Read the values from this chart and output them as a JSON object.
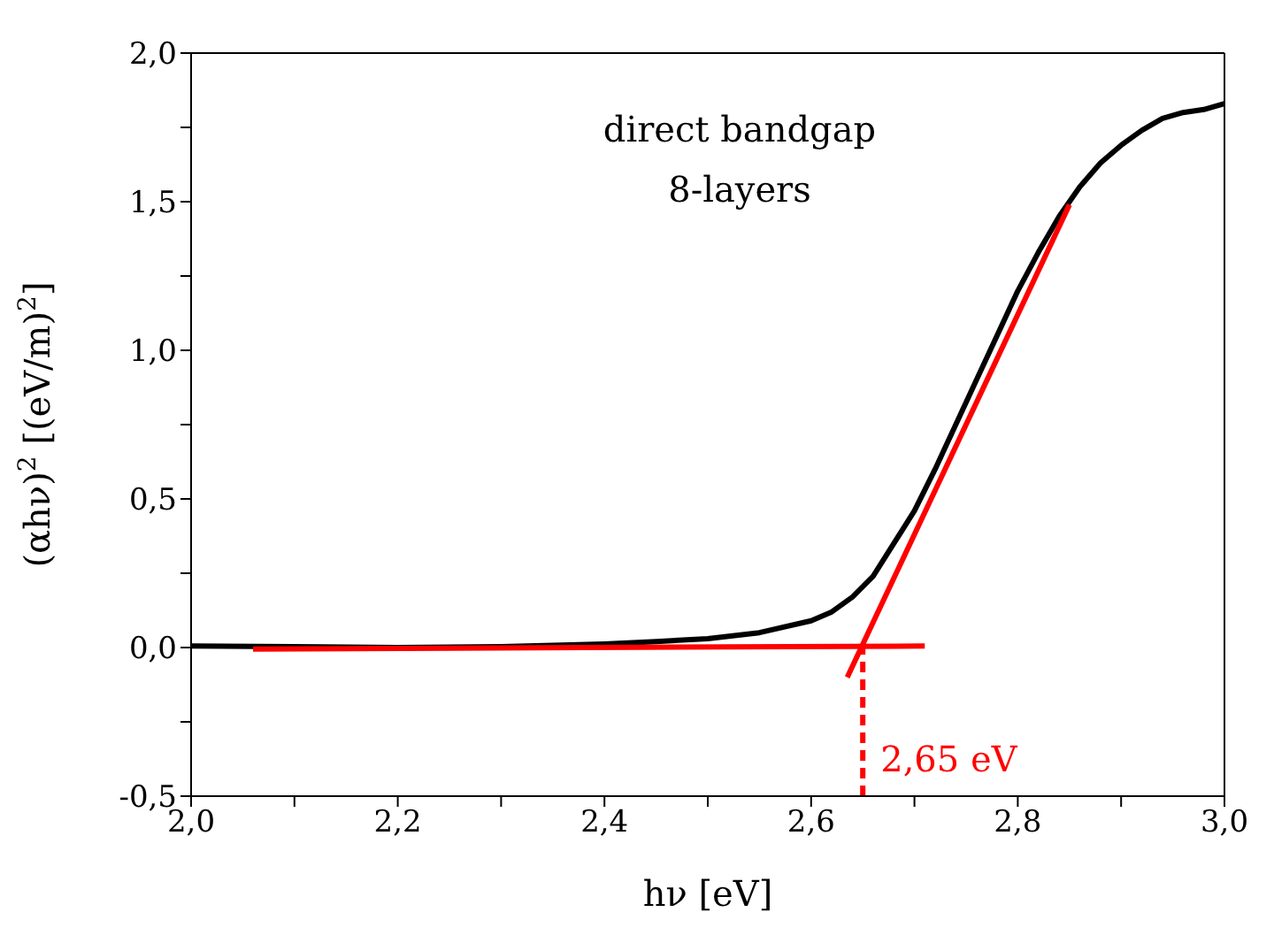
{
  "chart_data": {
    "type": "line",
    "xlabel": "hν  [eV]",
    "ylabel": "(αhν)$^{2}$   [(eV/m)$^{2}$]",
    "annotations": [
      "direct bandgap",
      "8-layers"
    ],
    "xlim": [
      2,
      3
    ],
    "ylim": [
      -0.5,
      2
    ],
    "xticks": [
      {
        "value": 2,
        "label": "2,0"
      },
      {
        "value": 2.1,
        "label": null
      },
      {
        "value": 2.2,
        "label": "2,2"
      },
      {
        "value": 2.3,
        "label": null
      },
      {
        "value": 2.4,
        "label": "2,4"
      },
      {
        "value": 2.5,
        "label": null
      },
      {
        "value": 2.6,
        "label": "2,6"
      },
      {
        "value": 2.7,
        "label": null
      },
      {
        "value": 2.8,
        "label": "2,8"
      },
      {
        "value": 2.9,
        "label": null
      },
      {
        "value": 3,
        "label": "3,0"
      }
    ],
    "yticks": [
      {
        "value": -0.5,
        "label": "-0,5"
      },
      {
        "value": -0.25,
        "label": null
      },
      {
        "value": 0,
        "label": "0,0"
      },
      {
        "value": 0.25,
        "label": null
      },
      {
        "value": 0.5,
        "label": "0,5"
      },
      {
        "value": 0.75,
        "label": null
      },
      {
        "value": 1,
        "label": "1,0"
      },
      {
        "value": 1.25,
        "label": null
      },
      {
        "value": 1.5,
        "label": "1,5"
      },
      {
        "value": 1.75,
        "label": null
      },
      {
        "value": 2,
        "label": "2,0"
      }
    ],
    "marker": "none",
    "line_style": "solid",
    "series": [
      {
        "color": "#000000",
        "x": [
          2.0,
          2.1,
          2.2,
          2.3,
          2.4,
          2.45,
          2.5,
          2.55,
          2.6,
          2.62,
          2.64,
          2.66,
          2.68,
          2.7,
          2.72,
          2.74,
          2.76,
          2.78,
          2.8,
          2.82,
          2.84,
          2.86,
          2.88,
          2.9,
          2.92,
          2.94,
          2.96,
          2.98,
          3.0
        ],
        "values": [
          0.005,
          0.003,
          0.0,
          0.003,
          0.012,
          0.02,
          0.03,
          0.05,
          0.09,
          0.12,
          0.17,
          0.24,
          0.35,
          0.46,
          0.6,
          0.75,
          0.9,
          1.05,
          1.2,
          1.33,
          1.45,
          1.55,
          1.63,
          1.69,
          1.74,
          1.78,
          1.8,
          1.81,
          1.83
        ]
      },
      {
        "color": "#ff0000",
        "x": [
          2.06,
          2.71
        ],
        "values": [
          -0.005,
          0.005
        ]
      },
      {
        "color": "#ff0000",
        "x": [
          2.635,
          2.85
        ],
        "values": [
          -0.1,
          1.49
        ]
      }
    ],
    "ref_lines": [
      {
        "axis": "x",
        "value": 2.65,
        "label": "2,65 eV",
        "color": "#ff0000",
        "line_style": "dashed"
      }
    ]
  }
}
